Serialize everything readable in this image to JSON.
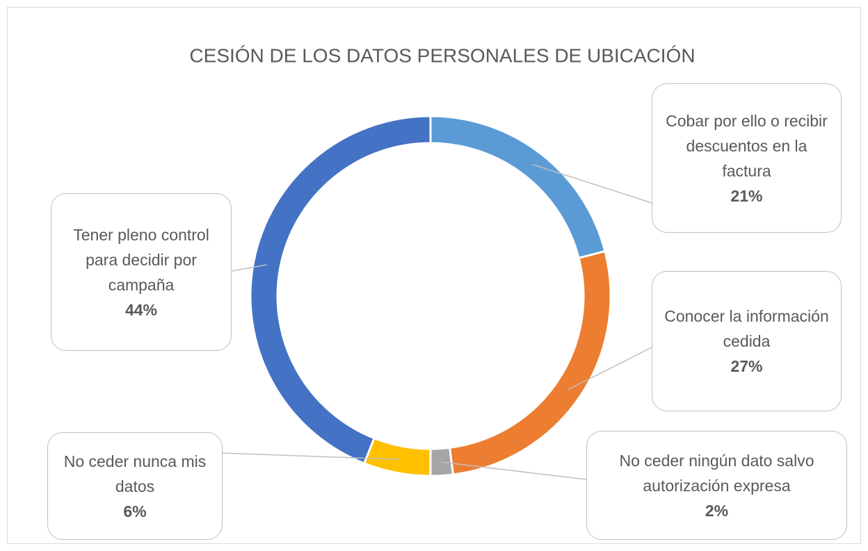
{
  "chart_data": {
    "type": "donut",
    "title": "CESIÓN DE LOS DATOS PERSONALES DE UBICACIÓN",
    "categories": [
      "Cobar por ello o recibir descuentos en la factura",
      "Conocer la información cedida",
      "No ceder ningún dato salvo autorización expresa",
      "No ceder nunca mis datos",
      "Tener pleno control para decidir por campaña"
    ],
    "values": [
      21,
      27,
      2,
      6,
      44
    ],
    "value_labels": [
      "21%",
      "27%",
      "2%",
      "6%",
      "44%"
    ],
    "colors": [
      "#5b9bd5",
      "#ed7d31",
      "#a5a5a5",
      "#ffc000",
      "#4472c4"
    ]
  }
}
